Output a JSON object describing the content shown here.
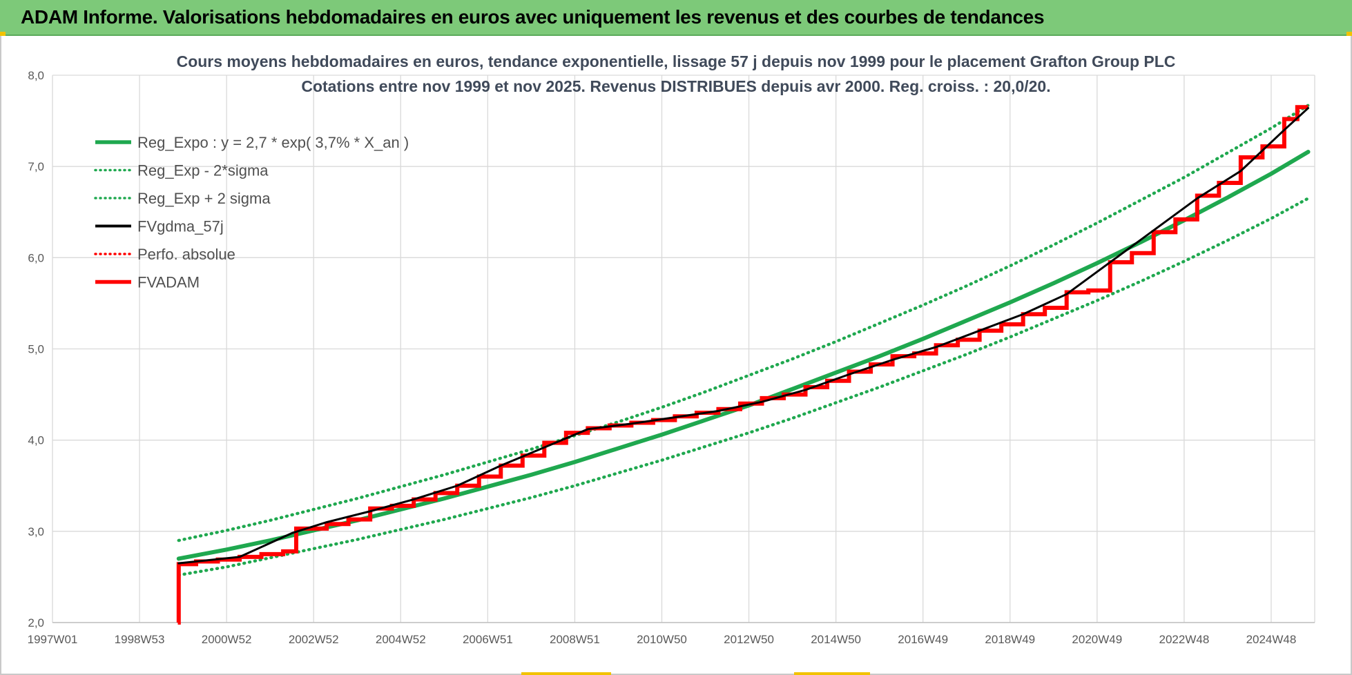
{
  "header": {
    "title": "ADAM Informe. Valorisations hebdomadaires en euros avec uniquement les revenus et des courbes de tendances"
  },
  "chart_data": {
    "type": "line",
    "title_line1": "Cours moyens hebdomadaires en euros, tendance exponentielle, lissage 57 j depuis nov 1999 pour le placement Grafton Group PLC",
    "title_line2": "Cotations entre nov 1999 et nov 2025. Revenus DISTRIBUES depuis avr 2000. Reg. croiss. : 20,0/20.",
    "xlabel": "",
    "ylabel": "",
    "x_range": [
      1997.0,
      2026.0
    ],
    "ylim": [
      2.0,
      8.0
    ],
    "yticks": [
      2.0,
      3.0,
      4.0,
      5.0,
      6.0,
      7.0,
      8.0
    ],
    "ytick_labels": [
      "2,0",
      "3,0",
      "4,0",
      "5,0",
      "6,0",
      "7,0",
      "8,0"
    ],
    "xticks": [
      1997.0,
      1999.0,
      2001.0,
      2003.0,
      2005.0,
      2007.0,
      2009.0,
      2011.0,
      2013.0,
      2015.0,
      2017.0,
      2019.0,
      2021.0,
      2023.0,
      2025.0
    ],
    "xtick_labels": [
      "1997W01",
      "1998W53",
      "2000W52",
      "2002W52",
      "2004W52",
      "2006W51",
      "2008W51",
      "2010W50",
      "2012W50",
      "2014W50",
      "2016W49",
      "2018W49",
      "2020W49",
      "2022W48",
      "2024W48"
    ],
    "grid": true,
    "legend_position": "top-left",
    "series": [
      {
        "name": "Reg_Expo : y = 2,7 * exp( 3,7% *  X_an )",
        "color": "#1fa84f",
        "style": "solid",
        "x": [
          1999.9,
          2001.0,
          2002.0,
          2003.0,
          2004.0,
          2005.0,
          2006.0,
          2007.0,
          2008.0,
          2009.0,
          2010.0,
          2011.0,
          2012.0,
          2013.0,
          2014.0,
          2015.0,
          2016.0,
          2017.0,
          2018.0,
          2019.0,
          2020.0,
          2021.0,
          2022.0,
          2023.0,
          2024.0,
          2025.0,
          2025.85
        ],
        "y": [
          2.7,
          2.8,
          2.9,
          3.01,
          3.12,
          3.24,
          3.36,
          3.49,
          3.62,
          3.76,
          3.91,
          4.06,
          4.22,
          4.38,
          4.56,
          4.74,
          4.92,
          5.11,
          5.31,
          5.51,
          5.72,
          5.94,
          6.17,
          6.41,
          6.66,
          6.92,
          7.16
        ]
      },
      {
        "name": "Reg_Exp - 2*sigma",
        "color": "#1fa84f",
        "style": "dotted",
        "x": [
          1999.9,
          2001.0,
          2002.0,
          2003.0,
          2004.0,
          2005.0,
          2006.0,
          2007.0,
          2008.0,
          2009.0,
          2010.0,
          2011.0,
          2012.0,
          2013.0,
          2014.0,
          2015.0,
          2016.0,
          2017.0,
          2018.0,
          2019.0,
          2020.0,
          2021.0,
          2022.0,
          2023.0,
          2024.0,
          2025.0,
          2025.85
        ],
        "y": [
          2.52,
          2.61,
          2.71,
          2.81,
          2.91,
          3.02,
          3.13,
          3.25,
          3.37,
          3.5,
          3.64,
          3.78,
          3.93,
          4.08,
          4.24,
          4.41,
          4.58,
          4.76,
          4.94,
          5.13,
          5.33,
          5.53,
          5.74,
          5.96,
          6.19,
          6.43,
          6.65
        ]
      },
      {
        "name": "Reg_Exp + 2 sigma",
        "color": "#1fa84f",
        "style": "dotted",
        "x": [
          1999.9,
          2001.0,
          2002.0,
          2003.0,
          2004.0,
          2005.0,
          2006.0,
          2007.0,
          2008.0,
          2009.0,
          2010.0,
          2011.0,
          2012.0,
          2013.0,
          2014.0,
          2015.0,
          2016.0,
          2017.0,
          2018.0,
          2019.0,
          2020.0,
          2021.0,
          2022.0,
          2023.0,
          2024.0,
          2025.0,
          2025.85
        ],
        "y": [
          2.9,
          3.01,
          3.12,
          3.24,
          3.36,
          3.49,
          3.62,
          3.76,
          3.9,
          4.05,
          4.2,
          4.36,
          4.53,
          4.71,
          4.89,
          5.08,
          5.28,
          5.48,
          5.69,
          5.91,
          6.14,
          6.38,
          6.63,
          6.88,
          7.15,
          7.42,
          7.67
        ]
      },
      {
        "name": "FVgdma_57j",
        "color": "#000000",
        "style": "solid",
        "x": [
          1999.9,
          2000.3,
          2001.3,
          2002.5,
          2003.3,
          2004.3,
          2005.3,
          2006.3,
          2007.3,
          2008.3,
          2009.3,
          2010.3,
          2011.3,
          2012.3,
          2013.3,
          2014.3,
          2015.3,
          2016.3,
          2017.3,
          2018.3,
          2019.3,
          2020.3,
          2021.3,
          2022.3,
          2023.3,
          2024.3,
          2025.3,
          2025.85
        ],
        "y": [
          2.65,
          2.67,
          2.72,
          2.98,
          3.1,
          3.22,
          3.35,
          3.5,
          3.72,
          3.92,
          4.12,
          4.18,
          4.25,
          4.32,
          4.42,
          4.55,
          4.72,
          4.88,
          5.02,
          5.2,
          5.38,
          5.6,
          5.95,
          6.3,
          6.65,
          6.95,
          7.4,
          7.64
        ]
      },
      {
        "name": "Perfo. absolue",
        "color": "#ff0000",
        "style": "dotted",
        "x": [],
        "y": []
      },
      {
        "name": "FVADAM",
        "color": "#ff0000",
        "style": "solid-thick-step",
        "x": [
          1999.88,
          1999.9,
          2000.3,
          2000.8,
          2001.3,
          2001.8,
          2002.3,
          2002.6,
          2003.3,
          2003.8,
          2004.3,
          2004.8,
          2005.3,
          2005.8,
          2006.3,
          2006.8,
          2007.3,
          2007.8,
          2008.3,
          2008.8,
          2009.3,
          2009.8,
          2010.3,
          2010.8,
          2011.3,
          2011.8,
          2012.3,
          2012.8,
          2013.3,
          2013.8,
          2014.3,
          2014.8,
          2015.3,
          2015.8,
          2016.3,
          2016.8,
          2017.3,
          2017.8,
          2018.3,
          2018.8,
          2019.3,
          2019.8,
          2020.3,
          2020.8,
          2021.3,
          2021.8,
          2022.3,
          2022.8,
          2023.3,
          2023.8,
          2024.3,
          2024.8,
          2025.3,
          2025.6
        ],
        "y": [
          2.0,
          2.64,
          2.67,
          2.69,
          2.72,
          2.75,
          2.78,
          3.03,
          3.08,
          3.13,
          3.25,
          3.28,
          3.35,
          3.42,
          3.5,
          3.6,
          3.72,
          3.83,
          3.97,
          4.08,
          4.13,
          4.16,
          4.19,
          4.22,
          4.26,
          4.3,
          4.34,
          4.4,
          4.46,
          4.5,
          4.58,
          4.65,
          4.75,
          4.83,
          4.92,
          4.95,
          5.04,
          5.1,
          5.2,
          5.27,
          5.38,
          5.45,
          5.62,
          5.64,
          5.95,
          6.05,
          6.28,
          6.42,
          6.68,
          6.82,
          7.1,
          7.22,
          7.52,
          7.65
        ]
      }
    ]
  }
}
